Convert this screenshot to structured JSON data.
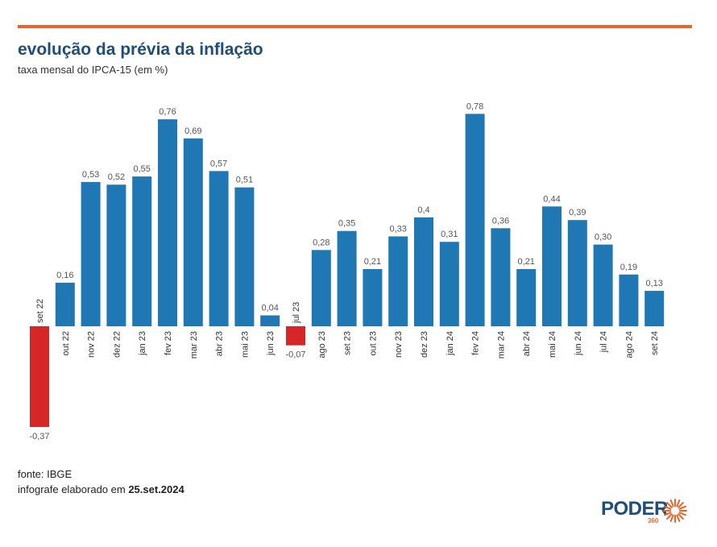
{
  "header": {
    "title": "evolução da prévia da inflação",
    "subtitle": "taxa mensal do IPCA-15 (em %)"
  },
  "footer": {
    "source_label": "fonte: IBGE",
    "made_prefix": "infografe elaborado em",
    "made_date": "25.set.2024"
  },
  "logo": {
    "brand": "PODER",
    "sub": "360",
    "icon": "sun-burst-icon"
  },
  "colors": {
    "positive": "#1f77b4",
    "negative": "#d62728",
    "accent": "#e8652a",
    "title": "#1f4e79"
  },
  "chart_data": {
    "type": "bar",
    "categories": [
      "set 22",
      "out 22",
      "nov 22",
      "dez 22",
      "jan 23",
      "fev 23",
      "mar 23",
      "abr 23",
      "mai 23",
      "jun 23",
      "jul 23",
      "ago 23",
      "set 23",
      "out 23",
      "nov 23",
      "dez 23",
      "jan 24",
      "fev 24",
      "mar 24",
      "abr 24",
      "mai 24",
      "jun 24",
      "jul 24",
      "ago 24",
      "set 24"
    ],
    "values": [
      -0.37,
      0.16,
      0.53,
      0.52,
      0.55,
      0.76,
      0.69,
      0.57,
      0.51,
      0.04,
      -0.07,
      0.28,
      0.35,
      0.21,
      0.33,
      0.4,
      0.31,
      0.78,
      0.36,
      0.21,
      0.44,
      0.39,
      0.3,
      0.19,
      0.13
    ],
    "value_labels": [
      "-0,37",
      "0,16",
      "0,53",
      "0,52",
      "0,55",
      "0,76",
      "0,69",
      "0,57",
      "0,51",
      "0,04",
      "-0,07",
      "0,28",
      "0,35",
      "0,21",
      "0,33",
      "0,4",
      "0,31",
      "0,78",
      "0,36",
      "0,21",
      "0,44",
      "0,39",
      "0,30",
      "0,19",
      "0,13"
    ],
    "title": "evolução da prévia da inflação",
    "subtitle": "taxa mensal do IPCA-15 (em %)",
    "xlabel": "",
    "ylabel": "",
    "grid": false,
    "legend": "none"
  }
}
